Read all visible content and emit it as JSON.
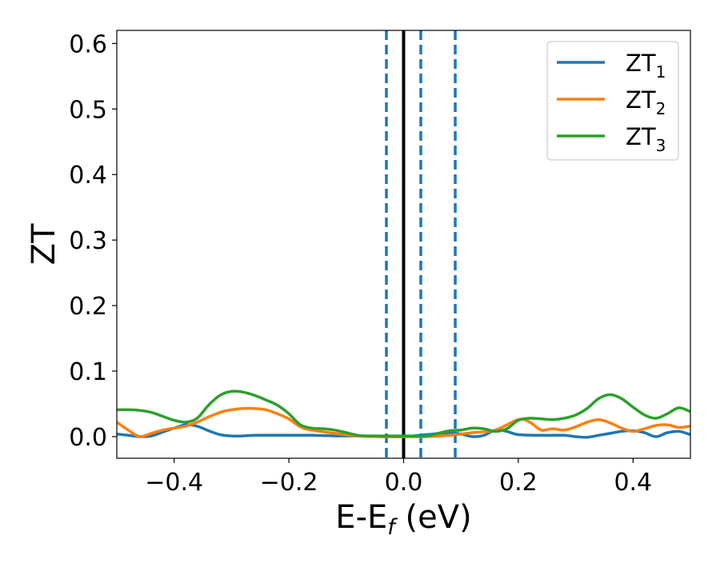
{
  "chart_data": {
    "type": "line",
    "xlabel_main": "E-E",
    "xlabel_sub": "f",
    "xlabel_unit": " (eV)",
    "ylabel": "ZT",
    "xlim": [
      -0.5,
      0.5
    ],
    "ylim": [
      -0.033,
      0.62
    ],
    "xticks": [
      -0.4,
      -0.2,
      0.0,
      0.2,
      0.4
    ],
    "xtick_labels": [
      "−0.4",
      "−0.2",
      "0.0",
      "0.2",
      "0.4"
    ],
    "yticks": [
      0.0,
      0.1,
      0.2,
      0.3,
      0.4,
      0.5,
      0.6
    ],
    "ytick_labels": [
      "0.0",
      "0.1",
      "0.2",
      "0.3",
      "0.4",
      "0.5",
      "0.6"
    ],
    "grid": false,
    "legend_position": "top-right",
    "vertical_lines": [
      {
        "x": 0.0,
        "style": "solid",
        "color": "#000000"
      },
      {
        "x": -0.03,
        "style": "dashed",
        "color": "#1f77b4"
      },
      {
        "x": 0.03,
        "style": "dashed",
        "color": "#1f77b4"
      },
      {
        "x": 0.09,
        "style": "dashed",
        "color": "#1f77b4"
      }
    ],
    "series": [
      {
        "name": "ZT",
        "sub": "1",
        "color": "#1f77b4",
        "x": [
          -0.5,
          -0.48,
          -0.46,
          -0.44,
          -0.42,
          -0.4,
          -0.38,
          -0.36,
          -0.34,
          -0.32,
          -0.3,
          -0.28,
          -0.26,
          -0.24,
          -0.2,
          -0.16,
          -0.12,
          -0.08,
          -0.04,
          0.0,
          0.04,
          0.08,
          0.1,
          0.12,
          0.14,
          0.16,
          0.18,
          0.2,
          0.24,
          0.28,
          0.3,
          0.32,
          0.34,
          0.36,
          0.38,
          0.4,
          0.42,
          0.44,
          0.46,
          0.48,
          0.5
        ],
        "y": [
          0.004,
          0.002,
          0.0,
          0.001,
          0.007,
          0.013,
          0.018,
          0.016,
          0.009,
          0.003,
          0.001,
          0.001,
          0.002,
          0.002,
          0.002,
          0.002,
          0.001,
          0.001,
          0.0,
          0.0,
          0.003,
          0.006,
          0.004,
          0.0,
          0.002,
          0.01,
          0.008,
          0.003,
          0.002,
          0.002,
          0.0,
          -0.001,
          0.002,
          0.005,
          0.008,
          0.009,
          0.006,
          0.0,
          0.006,
          0.008,
          0.003
        ]
      },
      {
        "name": "ZT",
        "sub": "2",
        "color": "#ff7f0e",
        "x": [
          -0.5,
          -0.48,
          -0.46,
          -0.44,
          -0.42,
          -0.4,
          -0.38,
          -0.36,
          -0.34,
          -0.32,
          -0.3,
          -0.28,
          -0.26,
          -0.24,
          -0.22,
          -0.2,
          -0.18,
          -0.16,
          -0.12,
          -0.08,
          -0.04,
          0.0,
          0.04,
          0.08,
          0.12,
          0.16,
          0.2,
          0.22,
          0.24,
          0.26,
          0.28,
          0.3,
          0.32,
          0.34,
          0.36,
          0.38,
          0.4,
          0.42,
          0.44,
          0.46,
          0.48,
          0.5
        ],
        "y": [
          0.022,
          0.01,
          0.0,
          0.005,
          0.01,
          0.013,
          0.016,
          0.022,
          0.03,
          0.037,
          0.041,
          0.043,
          0.043,
          0.041,
          0.035,
          0.027,
          0.015,
          0.01,
          0.005,
          0.001,
          0.0,
          0.0,
          0.0,
          0.002,
          0.006,
          0.01,
          0.026,
          0.022,
          0.01,
          0.012,
          0.01,
          0.015,
          0.022,
          0.026,
          0.021,
          0.013,
          0.008,
          0.012,
          0.017,
          0.018,
          0.014,
          0.016
        ]
      },
      {
        "name": "ZT",
        "sub": "3",
        "color": "#2ca02c",
        "x": [
          -0.5,
          -0.48,
          -0.46,
          -0.44,
          -0.42,
          -0.4,
          -0.38,
          -0.36,
          -0.34,
          -0.32,
          -0.3,
          -0.28,
          -0.26,
          -0.24,
          -0.22,
          -0.2,
          -0.18,
          -0.16,
          -0.14,
          -0.12,
          -0.1,
          -0.08,
          -0.06,
          -0.04,
          0.0,
          0.04,
          0.06,
          0.08,
          0.1,
          0.12,
          0.14,
          0.16,
          0.18,
          0.2,
          0.22,
          0.24,
          0.26,
          0.28,
          0.3,
          0.32,
          0.34,
          0.36,
          0.38,
          0.4,
          0.42,
          0.44,
          0.46,
          0.48,
          0.5
        ],
        "y": [
          0.041,
          0.041,
          0.04,
          0.037,
          0.031,
          0.025,
          0.022,
          0.028,
          0.048,
          0.063,
          0.069,
          0.068,
          0.063,
          0.056,
          0.048,
          0.035,
          0.018,
          0.013,
          0.012,
          0.01,
          0.006,
          0.002,
          0.001,
          0.001,
          0.001,
          0.001,
          0.005,
          0.009,
          0.01,
          0.013,
          0.012,
          0.008,
          0.012,
          0.025,
          0.028,
          0.027,
          0.026,
          0.028,
          0.033,
          0.043,
          0.058,
          0.064,
          0.058,
          0.045,
          0.033,
          0.028,
          0.035,
          0.044,
          0.038
        ]
      }
    ]
  }
}
